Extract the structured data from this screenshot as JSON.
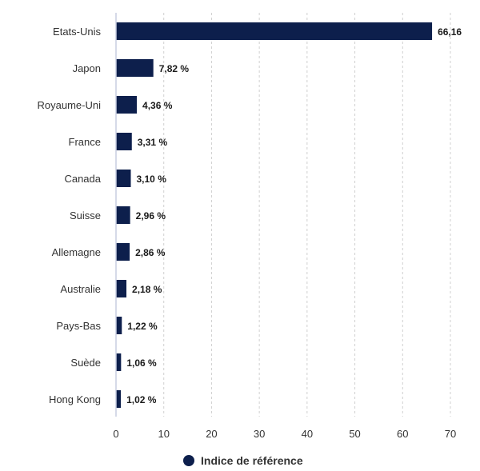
{
  "chart_data": {
    "type": "bar",
    "orientation": "horizontal",
    "categories": [
      "Etats-Unis",
      "Japon",
      "Royaume-Uni",
      "France",
      "Canada",
      "Suisse",
      "Allemagne",
      "Australie",
      "Pays-Bas",
      "Suède",
      "Hong Kong"
    ],
    "series": [
      {
        "name": "Indice de référence",
        "values": [
          66.16,
          7.82,
          4.36,
          3.31,
          3.1,
          2.96,
          2.86,
          2.18,
          1.22,
          1.06,
          1.02
        ],
        "value_labels": [
          "66,16",
          "7,82 %",
          "4,36 %",
          "3,31 %",
          "3,10 %",
          "2,96 %",
          "2,86 %",
          "2,18 %",
          "1,22 %",
          "1,06 %",
          "1,02 %"
        ],
        "color": "#0d1f4c"
      }
    ],
    "xlim": [
      0,
      70
    ],
    "xticks": [
      0,
      10,
      20,
      30,
      40,
      50,
      60,
      70
    ],
    "grid": "vertical-dashed",
    "legend": "bottom-center"
  }
}
